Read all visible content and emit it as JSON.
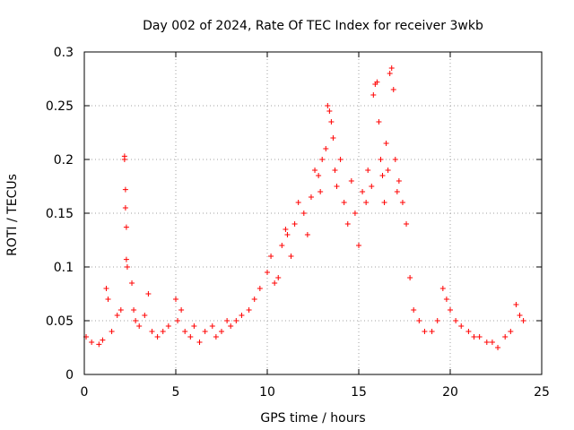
{
  "chart_data": {
    "type": "scatter",
    "title": "Day 002 of 2024, Rate Of TEC Index for receiver 3wkb",
    "xlabel": "GPS time / hours",
    "ylabel": "ROTI / TECUs",
    "xlim": [
      0,
      25
    ],
    "ylim": [
      0,
      0.3
    ],
    "x_ticks": [
      "0",
      "5",
      "10",
      "15",
      "20",
      "25"
    ],
    "y_ticks": [
      "0",
      "0.05",
      "0.1",
      "0.15",
      "0.2",
      "0.25",
      "0.3"
    ],
    "grid": true,
    "marker": "+",
    "color": "#ff0000",
    "series": [
      {
        "x": [
          0.1,
          0.4,
          0.8,
          1.0,
          1.2,
          1.3,
          1.5,
          1.8,
          2.0,
          2.2,
          2.2,
          2.25,
          2.25,
          2.3,
          2.3,
          2.35,
          2.6,
          2.7,
          2.8,
          3.0,
          3.3,
          3.5,
          3.7,
          4.0,
          4.3,
          4.6,
          5.0,
          5.1,
          5.3,
          5.5,
          5.8,
          6.0,
          6.3,
          6.6,
          7.0,
          7.2,
          7.5,
          7.8,
          8.0,
          8.3,
          8.6,
          9.0,
          9.3,
          9.6,
          10.0,
          10.2,
          10.4,
          10.6,
          10.8,
          11.0,
          11.1,
          11.3,
          11.5,
          11.7,
          12.0,
          12.2,
          12.4,
          12.6,
          12.8,
          12.9,
          13.0,
          13.2,
          13.3,
          13.4,
          13.5,
          13.6,
          13.7,
          13.8,
          14.0,
          14.2,
          14.4,
          14.6,
          14.8,
          15.0,
          15.2,
          15.4,
          15.5,
          15.7,
          15.8,
          15.9,
          16.0,
          16.1,
          16.2,
          16.3,
          16.4,
          16.5,
          16.6,
          16.7,
          16.8,
          16.9,
          17.0,
          17.1,
          17.2,
          17.4,
          17.6,
          17.8,
          18.0,
          18.3,
          18.6,
          19.0,
          19.3,
          19.6,
          19.8,
          20.0,
          20.3,
          20.6,
          21.0,
          21.3,
          21.6,
          22.0,
          22.3,
          22.6,
          23.0,
          23.3,
          23.6,
          23.8,
          24.0
        ],
        "y": [
          0.035,
          0.03,
          0.028,
          0.032,
          0.08,
          0.07,
          0.04,
          0.055,
          0.06,
          0.2,
          0.203,
          0.172,
          0.155,
          0.137,
          0.107,
          0.1,
          0.085,
          0.06,
          0.05,
          0.045,
          0.055,
          0.075,
          0.04,
          0.035,
          0.04,
          0.045,
          0.07,
          0.05,
          0.06,
          0.04,
          0.035,
          0.045,
          0.03,
          0.04,
          0.045,
          0.035,
          0.04,
          0.05,
          0.045,
          0.05,
          0.055,
          0.06,
          0.07,
          0.08,
          0.095,
          0.11,
          0.085,
          0.09,
          0.12,
          0.135,
          0.13,
          0.11,
          0.14,
          0.16,
          0.15,
          0.13,
          0.165,
          0.19,
          0.185,
          0.17,
          0.2,
          0.21,
          0.25,
          0.245,
          0.235,
          0.22,
          0.19,
          0.175,
          0.2,
          0.16,
          0.14,
          0.18,
          0.15,
          0.12,
          0.17,
          0.16,
          0.19,
          0.175,
          0.26,
          0.27,
          0.272,
          0.235,
          0.2,
          0.185,
          0.16,
          0.215,
          0.19,
          0.28,
          0.285,
          0.265,
          0.2,
          0.17,
          0.18,
          0.16,
          0.14,
          0.09,
          0.06,
          0.05,
          0.04,
          0.04,
          0.05,
          0.08,
          0.07,
          0.06,
          0.05,
          0.045,
          0.04,
          0.035,
          0.035,
          0.03,
          0.03,
          0.025,
          0.035,
          0.04,
          0.065,
          0.055,
          0.05
        ]
      }
    ]
  }
}
